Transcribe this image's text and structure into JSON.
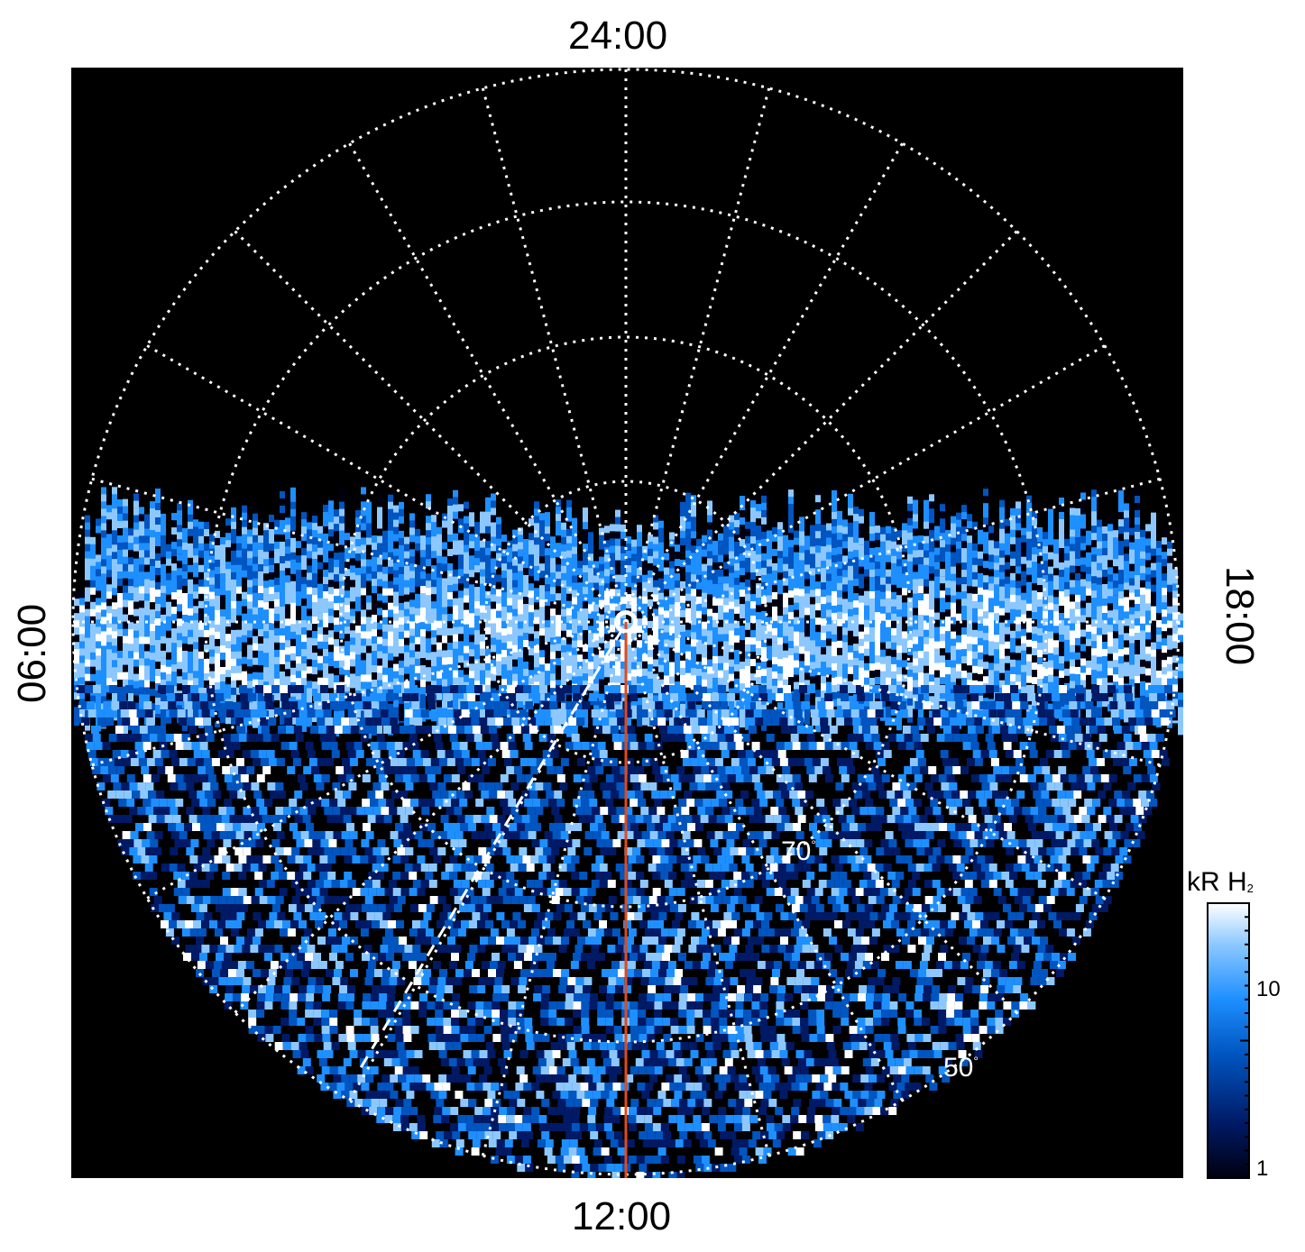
{
  "local_time_labels": {
    "top": "24:00",
    "bottom": "12:00",
    "left": "06:00",
    "right": "18:00"
  },
  "latitude_labels": {
    "lat70": "70",
    "lat50": "50",
    "degree": "°"
  },
  "colorbar": {
    "title": "kR H",
    "title_subscript": "2",
    "tick_high": "10",
    "tick_low": "1",
    "scale": "log",
    "colors": [
      "#000010",
      "#001a66",
      "#0055c0",
      "#1e8fff",
      "#8cc8ff",
      "#ffffff"
    ]
  },
  "colors": {
    "background": "#000000",
    "grid": "#ffffff",
    "meridian_line": "#e04a1c",
    "dashed_line": "#ffffff"
  }
}
